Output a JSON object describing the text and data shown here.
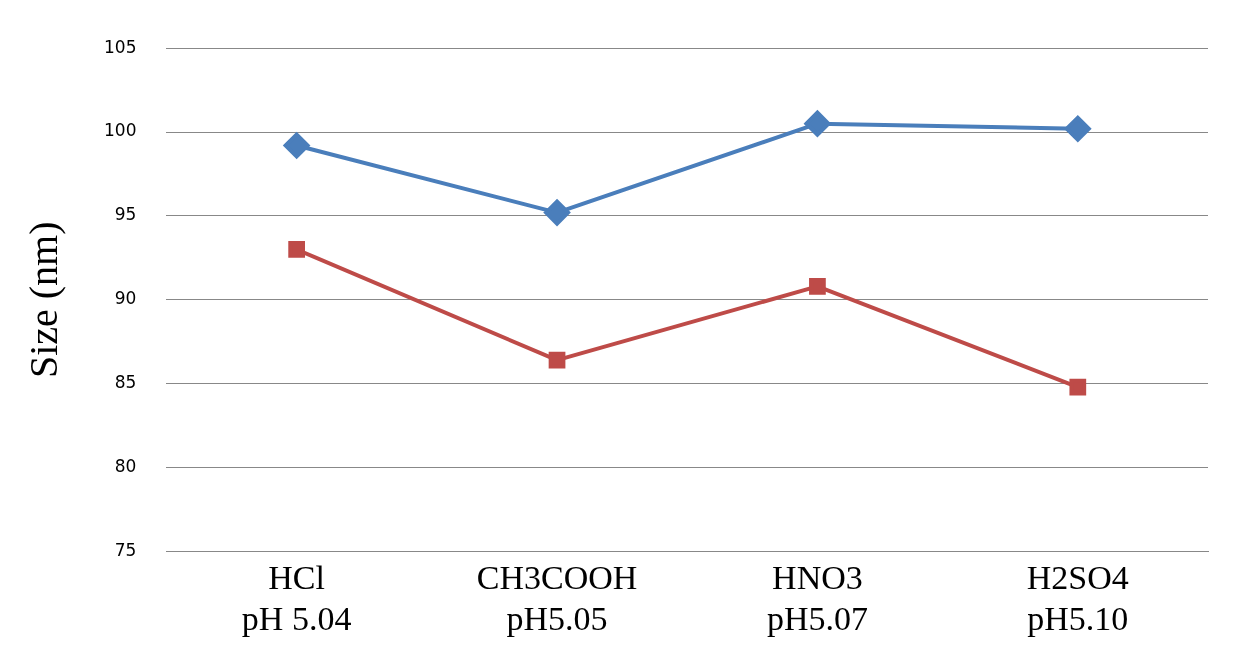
{
  "chart_data": {
    "type": "line",
    "ylabel": "Size (nm)",
    "categories": [
      "HCl\npH 5.04",
      "CH3COOH\npH5.05",
      "HNO3\npH5.07",
      "H2SO4\npH5.10"
    ],
    "series": [
      {
        "color": "#4a7ebb",
        "marker": "diamond",
        "values": [
          99.2,
          95.2,
          100.5,
          100.2
        ]
      },
      {
        "color": "#be4b48",
        "marker": "square",
        "values": [
          93.0,
          86.4,
          90.8,
          84.8
        ]
      }
    ],
    "ylim": [
      75,
      105
    ],
    "yticks": [
      75,
      80,
      85,
      90,
      95,
      100,
      105
    ],
    "grid": "y",
    "legend": false
  }
}
